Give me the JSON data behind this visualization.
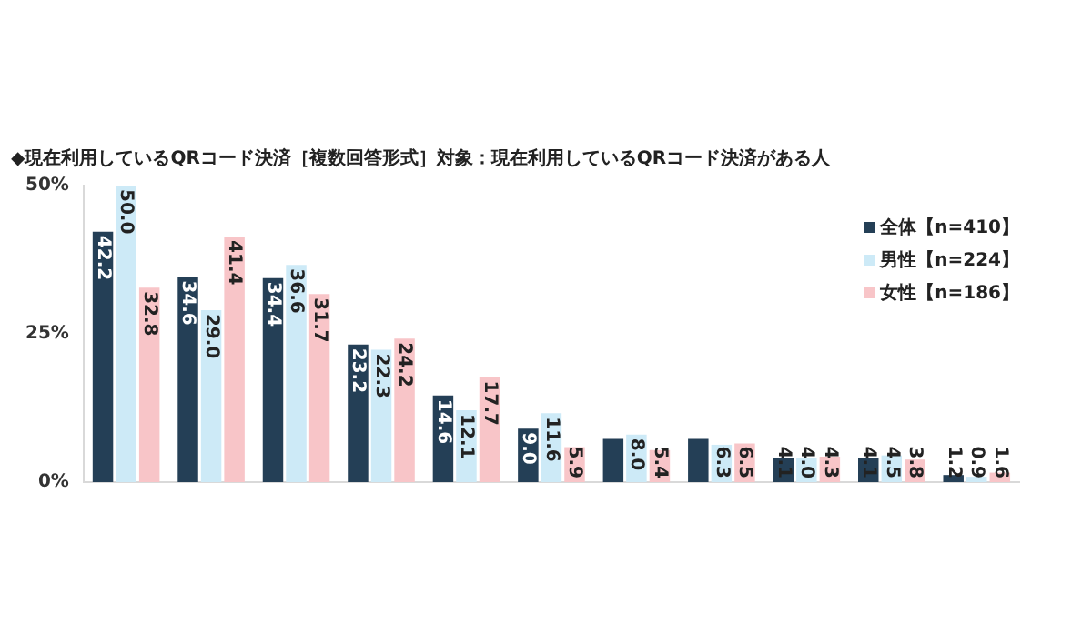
{
  "chart_data": {
    "type": "bar",
    "title": "◆現在利用しているQRコード決済［複数回答形式］対象：現在利用しているQRコード決済がある人",
    "categories": [
      null,
      null,
      null,
      null,
      null,
      null,
      null,
      null,
      null,
      null,
      null
    ],
    "series": [
      {
        "name": "全体【n=410】",
        "color": "#243f56",
        "values": [
          42.2,
          34.6,
          34.4,
          23.2,
          14.6,
          9.0,
          7.3,
          7.3,
          4.1,
          4.1,
          1.2
        ],
        "value_labels": [
          "42.2",
          "34.6",
          "34.4",
          "23.2",
          "14.6",
          "9.0",
          null,
          null,
          "4.1",
          "4.1",
          "1.2"
        ]
      },
      {
        "name": "男性【n=224】",
        "color": "#cdeaf7",
        "values": [
          50.0,
          29.0,
          36.6,
          22.3,
          12.1,
          11.6,
          8.0,
          6.3,
          4.0,
          4.5,
          0.9
        ],
        "value_labels": [
          "50.0",
          "29.0",
          "36.6",
          "22.3",
          "12.1",
          "11.6",
          "8.0",
          "6.3",
          "4.0",
          "4.5",
          "0.9"
        ]
      },
      {
        "name": "女性【n=186】",
        "color": "#f8c5c8",
        "values": [
          32.8,
          41.4,
          31.7,
          24.2,
          17.7,
          5.9,
          5.4,
          6.5,
          4.3,
          3.8,
          1.6
        ],
        "value_labels": [
          "32.8",
          "41.4",
          "31.7",
          "24.2",
          "17.7",
          "5.9",
          "5.4",
          "6.5",
          "4.3",
          "3.8",
          "1.6"
        ]
      }
    ],
    "ylim": [
      0,
      50
    ],
    "yticks": [
      {
        "value": 0,
        "label": "0%"
      },
      {
        "value": 25,
        "label": "25%"
      },
      {
        "value": 50,
        "label": "50%"
      }
    ],
    "legend": "top right"
  }
}
